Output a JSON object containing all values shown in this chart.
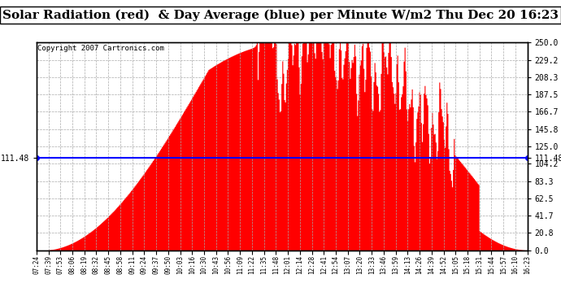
{
  "title": "Solar Radiation (red)  & Day Average (blue) per Minute W/m2 Thu Dec 20 16:23",
  "copyright": "Copyright 2007 Cartronics.com",
  "avg_line_value": 111.48,
  "y_max": 250.0,
  "y_min": 0.0,
  "right_ytick_labels": [
    "250.0",
    "229.2",
    "208.3",
    "187.5",
    "166.7",
    "145.8",
    "125.0",
    "104.2",
    "83.3",
    "62.5",
    "41.7",
    "20.8",
    "0.0"
  ],
  "right_ytick_values": [
    250.0,
    229.2,
    208.3,
    187.5,
    166.7,
    145.8,
    125.0,
    104.2,
    83.3,
    62.5,
    41.7,
    20.8,
    0.0
  ],
  "fill_color": "#ff0000",
  "line_color": "#0000ff",
  "background_color": "#ffffff",
  "grid_color": "#aaaaaa",
  "title_fontsize": 11,
  "x_tick_labels": [
    "07:24",
    "07:39",
    "07:53",
    "08:06",
    "08:19",
    "08:32",
    "08:45",
    "08:58",
    "09:11",
    "09:24",
    "09:37",
    "09:50",
    "10:03",
    "10:16",
    "10:30",
    "10:43",
    "10:56",
    "11:09",
    "11:22",
    "11:35",
    "11:48",
    "12:01",
    "12:14",
    "12:28",
    "12:41",
    "12:54",
    "13:07",
    "13:20",
    "13:33",
    "13:46",
    "13:59",
    "14:13",
    "14:26",
    "14:39",
    "14:52",
    "15:05",
    "15:18",
    "15:31",
    "15:44",
    "15:57",
    "16:10",
    "16:23"
  ]
}
